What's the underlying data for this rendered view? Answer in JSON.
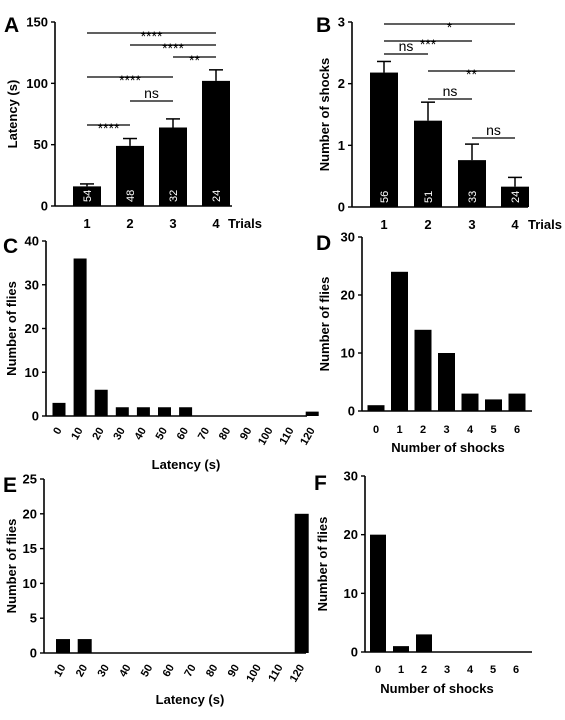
{
  "chart_data": [
    {
      "panel": "A",
      "type": "bar",
      "categories": [
        "1",
        "2",
        "3",
        "4"
      ],
      "values": [
        16,
        49,
        64,
        102
      ],
      "errors": [
        2,
        6,
        7,
        9
      ],
      "n_labels": [
        "54",
        "48",
        "32",
        "24"
      ],
      "xlabel": "Trials",
      "ylabel": "Latency (s)",
      "ylim": [
        0,
        150
      ],
      "yticks": [
        "0",
        "50",
        "100",
        "150"
      ],
      "significance": [
        {
          "from": 1,
          "to": 4,
          "label": "****"
        },
        {
          "from": 2,
          "to": 4,
          "label": "****"
        },
        {
          "from": 3,
          "to": 4,
          "label": "**"
        },
        {
          "from": 1,
          "to": 3,
          "label": "****"
        },
        {
          "from": 2,
          "to": 3,
          "label": "ns"
        },
        {
          "from": 1,
          "to": 2,
          "label": "****"
        }
      ]
    },
    {
      "panel": "B",
      "type": "bar",
      "categories": [
        "1",
        "2",
        "3",
        "4"
      ],
      "values": [
        2.18,
        1.4,
        0.76,
        0.33
      ],
      "errors": [
        0.18,
        0.3,
        0.26,
        0.15
      ],
      "n_labels": [
        "56",
        "51",
        "33",
        "24"
      ],
      "xlabel": "Trials",
      "ylabel": "Number of shocks",
      "ylim": [
        0,
        3
      ],
      "yticks": [
        "0",
        "1",
        "2",
        "3"
      ],
      "significance": [
        {
          "from": 1,
          "to": 4,
          "label": "*"
        },
        {
          "from": 1,
          "to": 3,
          "label": "***"
        },
        {
          "from": 1,
          "to": 2,
          "label": "ns"
        },
        {
          "from": 2,
          "to": 4,
          "label": "**"
        },
        {
          "from": 2,
          "to": 3,
          "label": "ns"
        },
        {
          "from": 3,
          "to": 4,
          "label": "ns"
        }
      ]
    },
    {
      "panel": "C",
      "type": "bar",
      "categories": [
        "0",
        "10",
        "20",
        "30",
        "40",
        "50",
        "60",
        "70",
        "80",
        "90",
        "100",
        "110",
        "120"
      ],
      "values": [
        3,
        36,
        6,
        2,
        2,
        2,
        2,
        0,
        0,
        0,
        0,
        0,
        1
      ],
      "xlabel": "Latency (s)",
      "ylabel": "Number of flies",
      "ylim": [
        0,
        40
      ],
      "yticks": [
        "0",
        "10",
        "20",
        "30",
        "40"
      ]
    },
    {
      "panel": "D",
      "type": "bar",
      "categories": [
        "0",
        "1",
        "2",
        "3",
        "4",
        "5",
        "6"
      ],
      "values": [
        1,
        24,
        14,
        10,
        3,
        2,
        3
      ],
      "xlabel": "Number of shocks",
      "ylabel": "Number of flies",
      "ylim": [
        0,
        30
      ],
      "yticks": [
        "0",
        "10",
        "20",
        "30"
      ]
    },
    {
      "panel": "E",
      "type": "bar",
      "categories": [
        "10",
        "20",
        "30",
        "40",
        "50",
        "60",
        "70",
        "80",
        "90",
        "100",
        "110",
        "120"
      ],
      "values": [
        2,
        2,
        0,
        0,
        0,
        0,
        0,
        0,
        0,
        0,
        0,
        20
      ],
      "xlabel": "Latency (s)",
      "ylabel": "Number of flies",
      "ylim": [
        0,
        25
      ],
      "yticks": [
        "0",
        "5",
        "10",
        "15",
        "20",
        "25"
      ]
    },
    {
      "panel": "F",
      "type": "bar",
      "categories": [
        "0",
        "1",
        "2",
        "3",
        "4",
        "5",
        "6"
      ],
      "values": [
        20,
        1,
        3,
        0,
        0,
        0,
        0
      ],
      "xlabel": "Number of shocks",
      "ylabel": "Number of flies",
      "ylim": [
        0,
        30
      ],
      "yticks": [
        "0",
        "10",
        "20",
        "30"
      ]
    }
  ]
}
